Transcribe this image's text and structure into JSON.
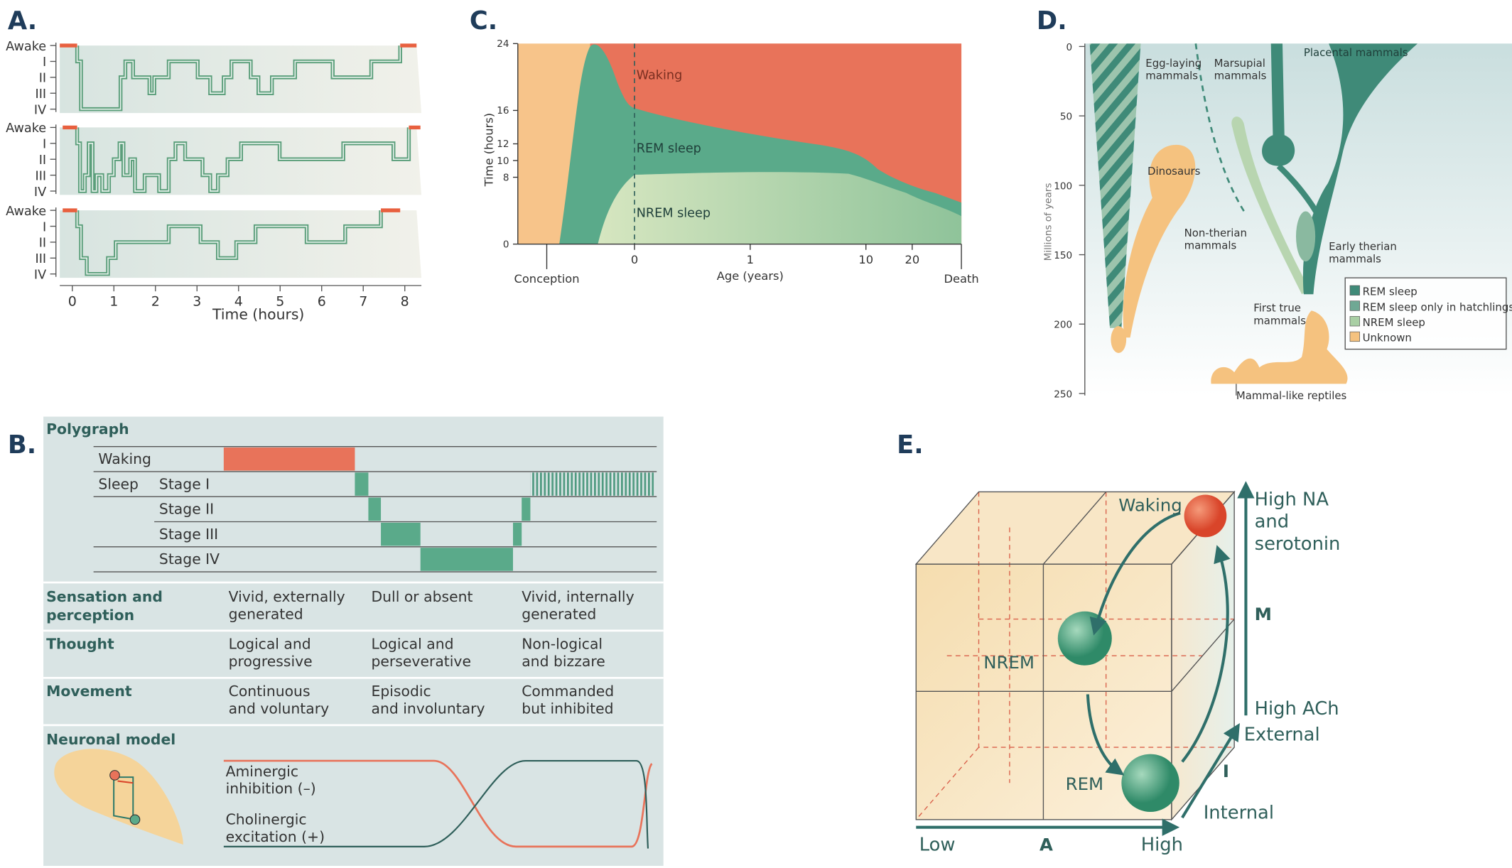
{
  "panel_a": {
    "label": "A.",
    "stages": [
      "Awake",
      "I",
      "II",
      "III",
      "IV"
    ],
    "xticks": [
      0,
      1,
      2,
      3,
      4,
      5,
      6,
      7,
      8
    ],
    "xlabel": "Time (hours)"
  },
  "panel_b": {
    "label": "B.",
    "polygraph": {
      "title": "Polygraph",
      "waking": "Waking",
      "sleep": "Sleep",
      "stages": [
        "Stage I",
        "Stage II",
        "Stage III",
        "Stage IV"
      ]
    },
    "rows": [
      {
        "heading": [
          "Sensation and",
          "perception"
        ],
        "cells": [
          [
            "Vivid, externally",
            "generated"
          ],
          [
            "Dull or absent"
          ],
          [
            "Vivid, internally",
            "generated"
          ]
        ]
      },
      {
        "heading": [
          "Thought"
        ],
        "cells": [
          [
            "Logical and",
            "progressive"
          ],
          [
            "Logical and",
            "perseverative"
          ],
          [
            "Non-logical",
            "and bizzare"
          ]
        ]
      },
      {
        "heading": [
          "Movement"
        ],
        "cells": [
          [
            "Continuous",
            "and voluntary"
          ],
          [
            "Episodic",
            "and involuntary"
          ],
          [
            "Commanded",
            "but inhibited"
          ]
        ]
      }
    ],
    "neuronal_model": {
      "title": "Neuronal model",
      "aminergic": [
        "Aminergic",
        "inhibition (–)"
      ],
      "cholinergic": [
        "Cholinergic",
        "excitation (+)"
      ]
    }
  },
  "panel_c": {
    "label": "C.",
    "ylabel": "Time (hours)",
    "yticks": [
      0,
      8,
      10,
      12,
      16,
      24
    ],
    "xticks": [
      "Conception",
      0,
      1,
      10,
      20,
      "Death"
    ],
    "xlabel": "Age (years)",
    "regions": [
      "Waking",
      "REM sleep",
      "NREM sleep"
    ]
  },
  "panel_d": {
    "label": "D.",
    "ylabel": "Millions of years",
    "yticks": [
      0,
      50,
      100,
      150,
      200,
      250
    ],
    "groups": {
      "egg": [
        "Egg-laying",
        "mammals"
      ],
      "marsupial": [
        "Marsupial",
        "mammals"
      ],
      "placental": [
        "Placental mammals"
      ],
      "dinosaurs": [
        "Dinosaurs"
      ],
      "non_therian": [
        "Non-therian",
        "mammals"
      ],
      "early_therian": [
        "Early therian",
        "mammals"
      ],
      "first_true": [
        "First true",
        "mammals"
      ],
      "reptiles": [
        "Mammal-like reptiles"
      ]
    },
    "legend": [
      {
        "name": "REM sleep",
        "color": "#3f8a78"
      },
      {
        "name": "REM sleep only in hatchlings",
        "color": "#6fa894"
      },
      {
        "name": "NREM sleep",
        "color": "#a9cfa4"
      },
      {
        "name": "Unknown",
        "color": "#f5c27f"
      }
    ]
  },
  "panel_e": {
    "label": "E.",
    "states": [
      "Waking",
      "NREM",
      "REM"
    ],
    "m_axis": {
      "top": [
        "High NA",
        "and",
        "serotonin"
      ],
      "name": "M",
      "bottom": "High ACh"
    },
    "i_axis": {
      "top": "External",
      "name": "I",
      "bottom": "Internal"
    },
    "a_axis": {
      "low": "Low",
      "name": "A",
      "high": "High"
    }
  }
}
